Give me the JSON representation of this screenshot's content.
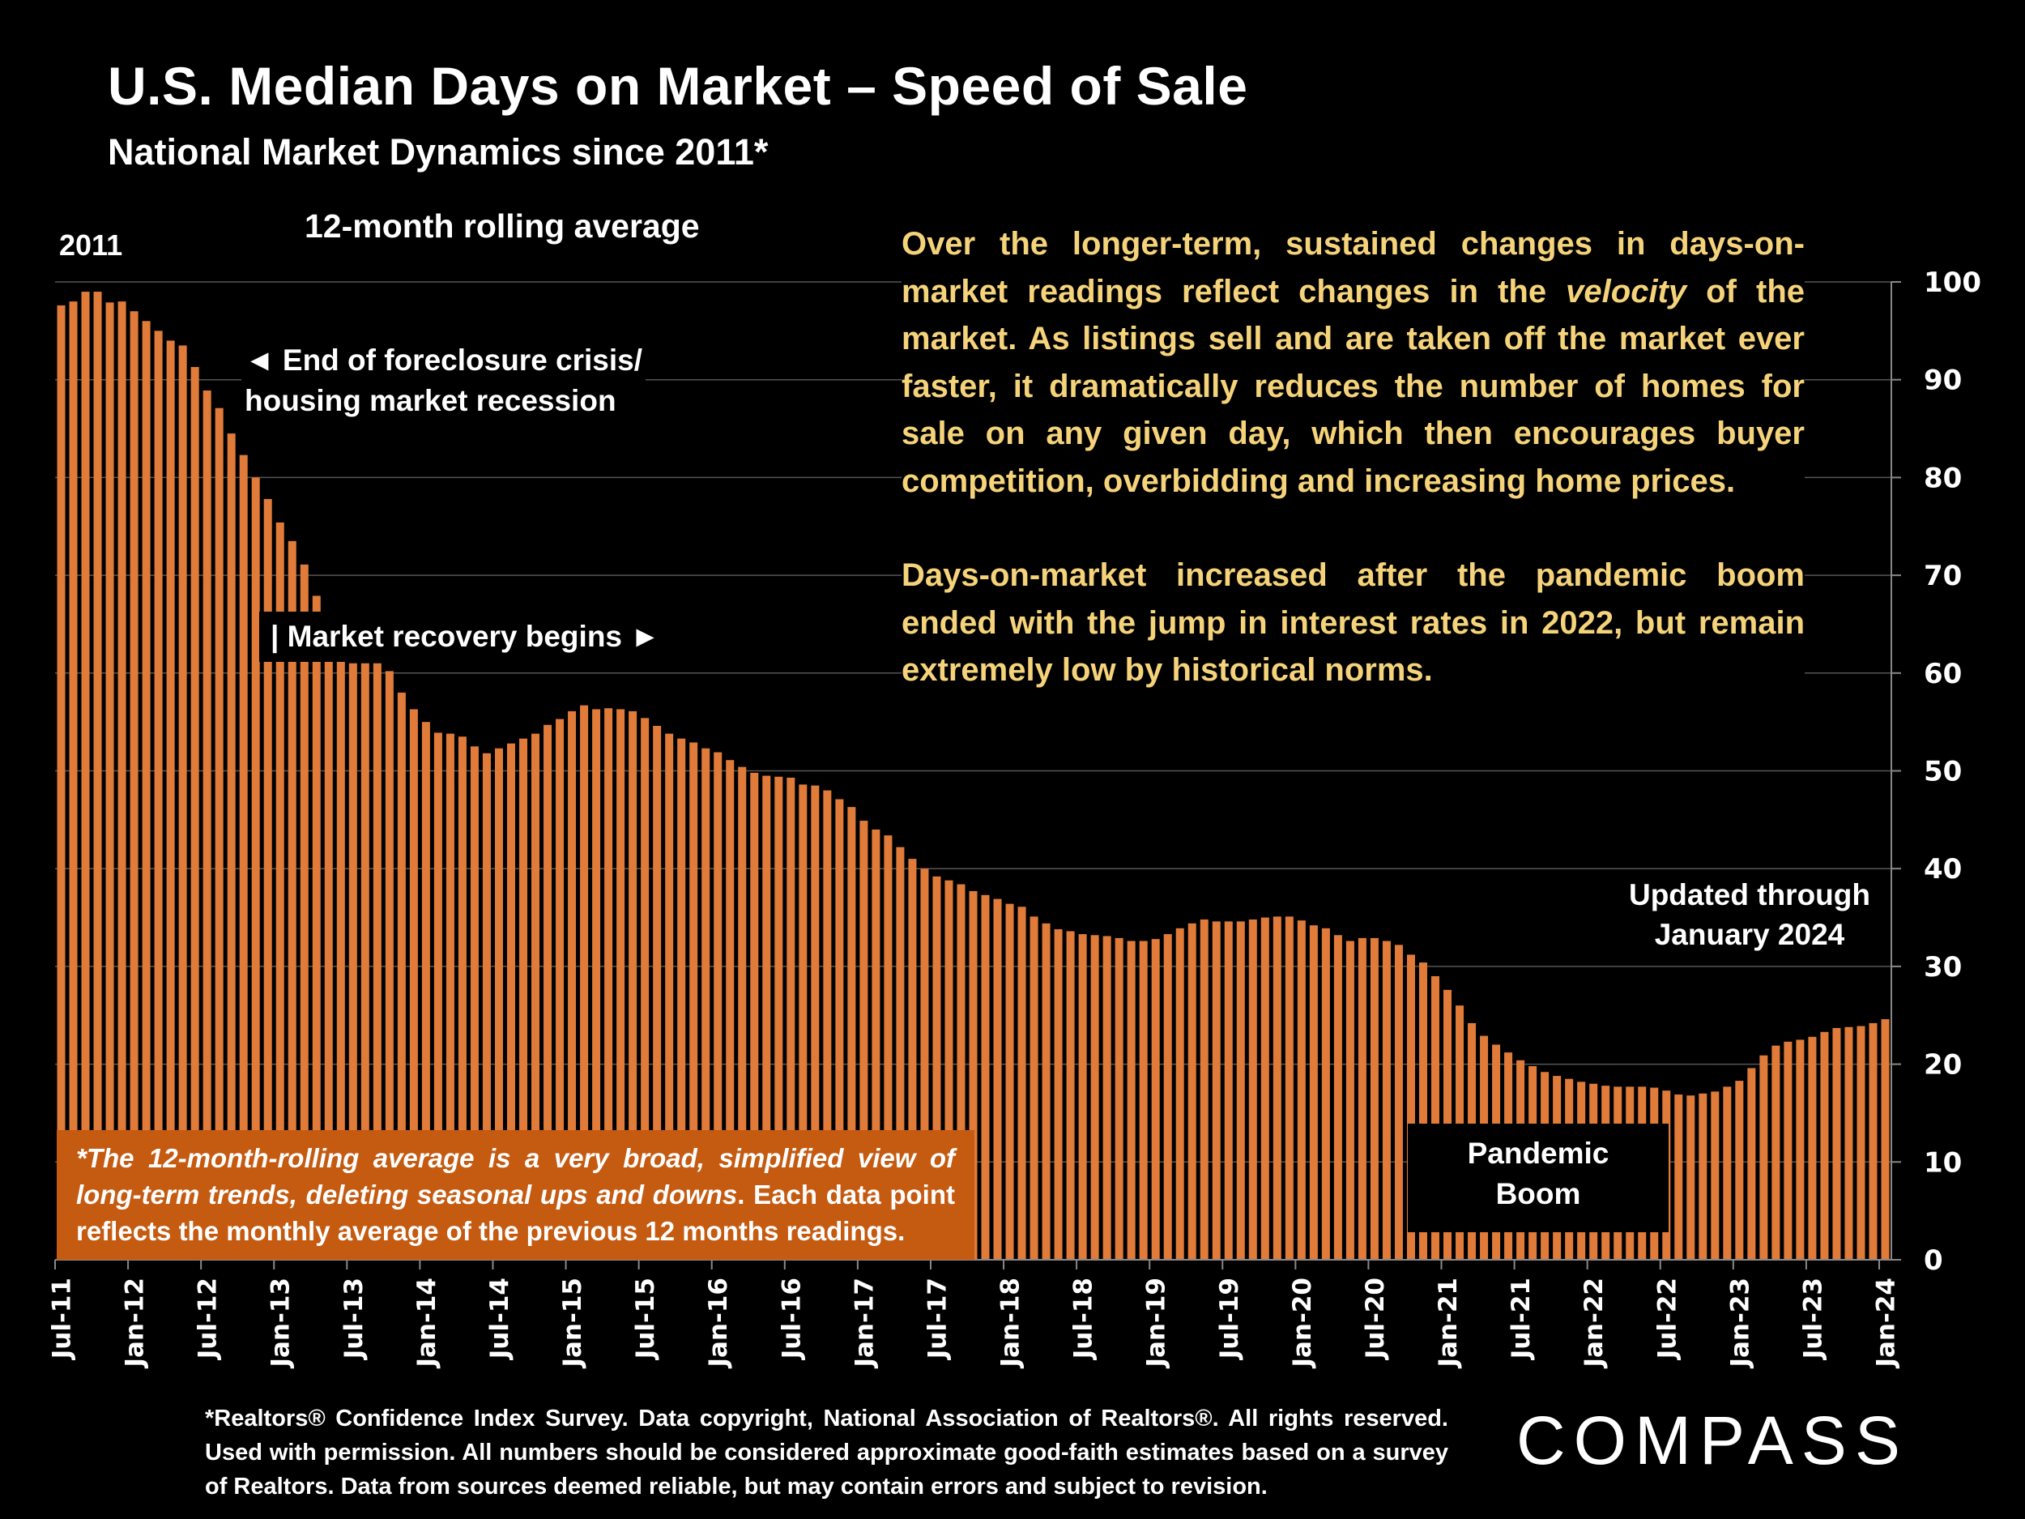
{
  "header": {
    "title": "U.S. Median Days on Market – Speed of Sale",
    "subtitle": "National Market Dynamics since 2011*",
    "start_year_label": "2011",
    "rolling_label": "12-month rolling average"
  },
  "annotations": {
    "foreclosure_line1": "◄ End of foreclosure crisis/",
    "foreclosure_line2": "housing market recession",
    "recovery": "| Market recovery begins ►",
    "updated_line1": "Updated through",
    "updated_line2": "January 2024",
    "pandemic_line1": "Pandemic",
    "pandemic_line2": "Boom"
  },
  "commentary": {
    "p1_before": "Over the longer-term, sustained changes in days-on-market readings reflect changes in the ",
    "p1_italic": "velocity",
    "p1_after": " of the market. As listings sell and are taken off the market ever faster, it dramatically reduces the number of homes for sale on any given day, which then encourages buyer competition, overbidding and increasing home prices.",
    "p2": "Days-on-market increased after the pandemic boom ended with the jump in interest rates in 2022, but remain extremely low by historical norms."
  },
  "note": {
    "italic": "*The 12-month-rolling average is a very broad, simplified view of long-term trends, deleting seasonal ups and downs",
    "rest": ". Each data point reflects the monthly average of the previous 12 months readings."
  },
  "footer": {
    "text": "*Realtors® Confidence Index Survey. Data copyright, National Association of Realtors®. All rights reserved. Used with permission. All numbers should be considered approximate good-faith estimates based on a survey of Realtors. Data from sources deemed reliable, but may contain errors and subject to revision.",
    "logo": "COMPASS"
  },
  "colors": {
    "bar": "#e07b39",
    "note_bg": "#c55a11",
    "commentary": "#f5d37a",
    "grid": "#555555"
  },
  "chart_data": {
    "type": "bar",
    "title": "U.S. Median Days on Market – Speed of Sale",
    "xlabel": "",
    "ylabel": "Median days on market (12-month rolling average)",
    "ylim": [
      0,
      100
    ],
    "yticks": [
      0,
      10,
      20,
      30,
      40,
      50,
      60,
      70,
      80,
      90,
      100
    ],
    "y_axis_side": "right",
    "grid": true,
    "start": "Jul-11",
    "end": "Jan-24",
    "xtick_labels": [
      "Jul-11",
      "Jan-12",
      "Jul-12",
      "Jan-13",
      "Jul-13",
      "Jan-14",
      "Jul-14",
      "Jan-15",
      "Jul-15",
      "Jan-16",
      "Jul-16",
      "Jan-17",
      "Jul-17",
      "Jan-18",
      "Jul-18",
      "Jan-19",
      "Jul-19",
      "Jan-20",
      "Jul-20",
      "Jan-21",
      "Jul-21",
      "Jan-22",
      "Jul-22",
      "Jan-23",
      "Jul-23",
      "Jan-24"
    ],
    "values": [
      97.6,
      98.0,
      99.0,
      99.0,
      97.9,
      98.0,
      97.0,
      96.0,
      95.0,
      94.0,
      93.5,
      91.3,
      88.9,
      87.1,
      84.5,
      82.3,
      80.0,
      77.8,
      75.4,
      73.5,
      71.1,
      67.9,
      64.0,
      62.0,
      61.0,
      61.0,
      61.0,
      60.2,
      58.0,
      56.3,
      55.0,
      53.9,
      53.8,
      53.5,
      52.5,
      51.8,
      52.3,
      52.8,
      53.3,
      53.8,
      54.7,
      55.3,
      56.1,
      56.7,
      56.3,
      56.4,
      56.3,
      56.1,
      55.4,
      54.6,
      53.8,
      53.3,
      52.9,
      52.3,
      51.9,
      51.1,
      50.4,
      49.8,
      49.5,
      49.4,
      49.3,
      48.6,
      48.5,
      48.0,
      47.1,
      46.3,
      44.9,
      44.0,
      43.4,
      42.2,
      41.0,
      40.0,
      39.2,
      38.8,
      38.4,
      37.7,
      37.3,
      36.9,
      36.4,
      36.1,
      35.1,
      34.4,
      33.8,
      33.6,
      33.3,
      33.2,
      33.1,
      32.9,
      32.6,
      32.6,
      32.8,
      33.3,
      33.9,
      34.4,
      34.8,
      34.6,
      34.6,
      34.6,
      34.8,
      35.0,
      35.1,
      35.1,
      34.7,
      34.2,
      33.9,
      33.2,
      32.6,
      32.9,
      32.9,
      32.6,
      32.2,
      31.2,
      30.4,
      29.0,
      27.6,
      26.0,
      24.2,
      22.9,
      22.0,
      21.2,
      20.4,
      19.8,
      19.2,
      18.8,
      18.5,
      18.2,
      18.0,
      17.8,
      17.7,
      17.7,
      17.7,
      17.6,
      17.3,
      16.9,
      16.8,
      17.0,
      17.2,
      17.7,
      18.3,
      19.6,
      20.9,
      21.9,
      22.3,
      22.5,
      22.8,
      23.3,
      23.7,
      23.8,
      23.9,
      24.2,
      24.6
    ]
  }
}
